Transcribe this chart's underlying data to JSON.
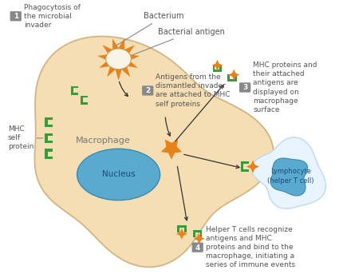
{
  "bg_color": "#ffffff",
  "macrophage_color": "#f5deb3",
  "macrophage_edge": "#d4b483",
  "nucleus_color": "#5aaad0",
  "nucleus_edge": "#3a8ab0",
  "bacterium_body_color": "#f8f4e8",
  "spike_color": "#e8821a",
  "lymphocyte_body_color": "#e8f4ff",
  "lymphocyte_edge": "#c0d8f0",
  "lymphocyte_nucleus_color": "#5aaad0",
  "mhc_green": "#3a9a3a",
  "antigen_orange": "#e8821a",
  "label_color": "#555555",
  "step_box_color": "#888888",
  "arrow_color": "#333333",
  "step1_text": "Phagocytosis of\nthe microbial\ninvader",
  "step2_text": "Antigens from the\ndismantled invader\nare attached to MHC\nself proteins",
  "step3_text": "MHC proteins and\ntheir attached\nantigens are\ndisplayed on\nmacrophage\nsurface",
  "step4_text": "Helper T cells recognize\nantigens and MHC\nproteins and bind to the\nmacrophage, initiating a\nseries of immune events",
  "bacterium_label": "Bacterium",
  "bacterial_antigen_label": "Bacterial antigen",
  "macrophage_label": "Macrophage",
  "nucleus_label": "Nucleus",
  "mhc_label": "MHC\nself\nprotein",
  "lymphocyte_label": "Lymphocyte\n(helper T cell)"
}
